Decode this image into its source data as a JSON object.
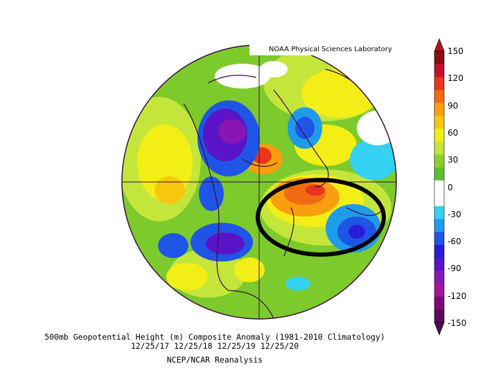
{
  "credit": "NOAA Physical Sciences Laboratory",
  "caption": {
    "title": "500mb Geopotential Height (m) Composite Anomaly (1981-2010 Climatology)",
    "dates": "12/25/17 12/25/18 12/25/19 12/25/20",
    "source": "NCEP/NCAR Reanalysis"
  },
  "colorbar": {
    "labels": [
      "150",
      "120",
      "90",
      "60",
      "30",
      "0",
      "-30",
      "-60",
      "-90",
      "-120",
      "-150"
    ],
    "colors": [
      "#8b0e0e",
      "#c8102e",
      "#e8351d",
      "#f06a14",
      "#f89e0f",
      "#f7c70e",
      "#f4ee17",
      "#c4e63b",
      "#8ecf2c",
      "#5bbf2e",
      "#ffffff",
      "#ffffff",
      "#34d1f2",
      "#1f9bea",
      "#1f55e6",
      "#2a1bd8",
      "#5a14c7",
      "#8716b5",
      "#a5149a",
      "#7a0a77",
      "#5c0a5a"
    ],
    "arrow_top": "#b51313",
    "arrow_bottom": "#4d0a55"
  },
  "map": {
    "projection": "north-polar-stereographic",
    "annotation": "black-ellipse-over-north-atlantic"
  }
}
